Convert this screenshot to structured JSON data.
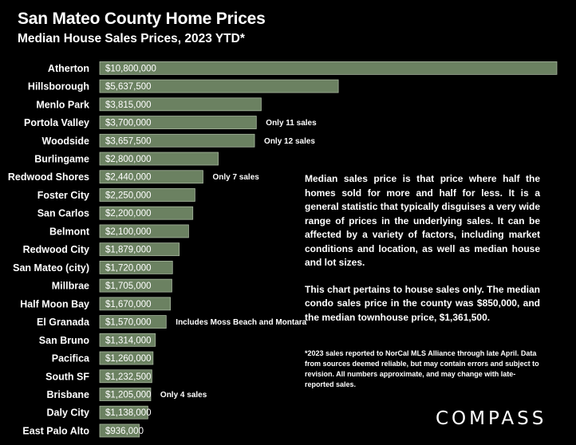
{
  "chart_data": {
    "type": "bar",
    "orientation": "horizontal",
    "title": "San Mateo County Home Prices",
    "subtitle": "Median House Sales Prices, 2023 YTD*",
    "categories": [
      "Atherton",
      "Hillsborough",
      "Menlo Park",
      "Portola Valley",
      "Woodside",
      "Burlingame",
      "Redwood Shores",
      "Foster City",
      "San Carlos",
      "Belmont",
      "Redwood City",
      "San Mateo (city)",
      "Millbrae",
      "Half Moon Bay",
      "El Granada",
      "San Bruno",
      "Pacifica",
      "South SF",
      "Brisbane",
      "Daly City",
      "East Palo Alto"
    ],
    "values": [
      10800000,
      5637500,
      3815000,
      3700000,
      3657500,
      2800000,
      2440000,
      2250000,
      2200000,
      2100000,
      1879000,
      1720000,
      1705000,
      1670000,
      1570000,
      1314000,
      1260000,
      1232500,
      1205000,
      1138000,
      936000
    ],
    "value_labels": [
      "$10,800,000",
      "$5,637,500",
      "$3,815,000",
      "$3,700,000",
      "$3,657,500",
      "$2,800,000",
      "$2,440,000",
      "$2,250,000",
      "$2,200,000",
      "$2,100,000",
      "$1,879,000",
      "$1,720,000",
      "$1,705,000",
      "$1,670,000",
      "$1,570,000",
      "$1,314,000",
      "$1,260,000",
      "$1,232,500",
      "$1,205,000",
      "$1,138,000",
      "$936,000"
    ],
    "annotations": [
      {
        "category": "Portola Valley",
        "text": "Only 11 sales"
      },
      {
        "category": "Woodside",
        "text": "Only 12 sales"
      },
      {
        "category": "Redwood Shores",
        "text": "Only 7 sales"
      },
      {
        "category": "El Granada",
        "text": "Includes Moss Beach and Montara"
      },
      {
        "category": "Brisbane",
        "text": "Only 4 sales"
      }
    ],
    "bar_color": "#6b8161",
    "bar_border_color": "#a9b8a0",
    "xlim": [
      0,
      10800000
    ],
    "grid": false,
    "legend": "none"
  },
  "notes": {
    "paragraph1": "Median sales price is that price where half the homes sold for more and half for less. It is a general statistic that typically disguises a very wide range of prices in the underlying sales. It can be affected by a variety of factors, including market conditions and location, as well as median house and lot sizes.",
    "paragraph2": "This chart pertains to house sales only. The median condo sales price in the county was $850,000, and the median townhouse price, $1,361,500.",
    "footnote": "*2023 sales reported to NorCal MLS Alliance through late April. Data from sources deemed reliable, but may contain errors and subject to revision. All numbers approximate, and may change with late-reported sales."
  },
  "brand": {
    "logo_text": "COMPASS"
  },
  "colors": {
    "background": "#000000",
    "text": "#ffffff"
  }
}
